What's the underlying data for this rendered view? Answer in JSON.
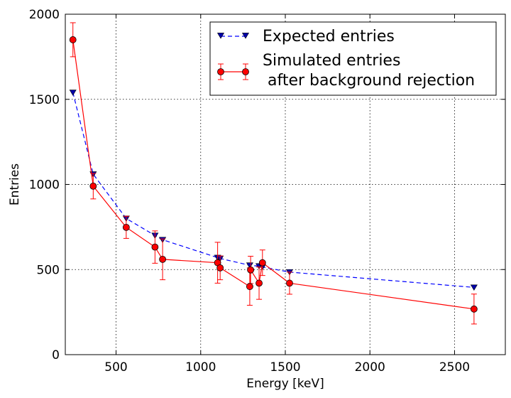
{
  "chart_data": {
    "type": "line",
    "title": "",
    "xlabel": "Energy [keV]",
    "ylabel": "Entries",
    "xlim": [
      200,
      2800
    ],
    "ylim": [
      0,
      2000
    ],
    "xticks": [
      500,
      1000,
      1500,
      2000,
      2500
    ],
    "yticks": [
      0,
      500,
      1000,
      1500,
      2000
    ],
    "grid": true,
    "legend_position": "top-right",
    "series": [
      {
        "name": "Expected entries",
        "style": "dashed",
        "marker": "triangle-down",
        "color": "#0000ff",
        "marker_fill": "#0000aa",
        "points": [
          {
            "x": 245,
            "y": 1540
          },
          {
            "x": 365,
            "y": 1060
          },
          {
            "x": 560,
            "y": 800
          },
          {
            "x": 730,
            "y": 700
          },
          {
            "x": 775,
            "y": 675
          },
          {
            "x": 1100,
            "y": 570
          },
          {
            "x": 1115,
            "y": 565
          },
          {
            "x": 1290,
            "y": 525
          },
          {
            "x": 1345,
            "y": 520
          },
          {
            "x": 1365,
            "y": 515
          },
          {
            "x": 1525,
            "y": 485
          },
          {
            "x": 2615,
            "y": 395
          }
        ]
      },
      {
        "name": "Simulated entries\n after background rejection",
        "style": "solid",
        "marker": "circle",
        "color": "#ff0000",
        "marker_fill": "#ff0000",
        "points": [
          {
            "x": 245,
            "y": 1850,
            "err": 100
          },
          {
            "x": 365,
            "y": 990,
            "err": 75
          },
          {
            "x": 560,
            "y": 748,
            "err": 65
          },
          {
            "x": 730,
            "y": 632,
            "err": 95
          },
          {
            "x": 775,
            "y": 560,
            "err": 120
          },
          {
            "x": 1100,
            "y": 540,
            "err": 120
          },
          {
            "x": 1115,
            "y": 510,
            "err": 70
          },
          {
            "x": 1290,
            "y": 400,
            "err": 110
          },
          {
            "x": 1295,
            "y": 498,
            "err": 80
          },
          {
            "x": 1345,
            "y": 420,
            "err": 95
          },
          {
            "x": 1365,
            "y": 540,
            "err": 75
          },
          {
            "x": 1525,
            "y": 420,
            "err": 65
          },
          {
            "x": 2615,
            "y": 268,
            "err": 88
          }
        ]
      }
    ]
  }
}
